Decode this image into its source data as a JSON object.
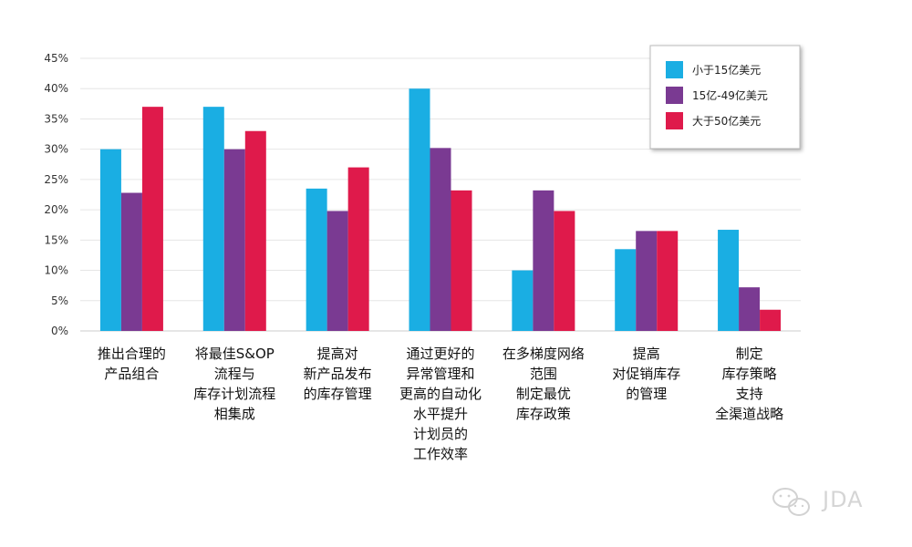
{
  "chart_data": {
    "type": "bar",
    "title": "",
    "xlabel": "",
    "ylabel": "",
    "ylim": [
      0,
      45
    ],
    "yticks": [
      0,
      5,
      10,
      15,
      20,
      25,
      30,
      35,
      40,
      45
    ],
    "ytick_format": "%",
    "grid": true,
    "legend_position": "top-right",
    "categories": [
      [
        "推出合理的",
        "产品组合"
      ],
      [
        "将最佳S&OP",
        "流程与",
        "库存计划流程",
        "相集成"
      ],
      [
        "提高对",
        "新产品发布",
        "的库存管理"
      ],
      [
        "通过更好的",
        "异常管理和",
        "更高的自动化",
        "水平提升",
        "计划员的",
        "工作效率"
      ],
      [
        "在多梯度网络",
        "范围",
        "制定最优",
        "库存政策"
      ],
      [
        "提高",
        "对促销库存",
        "的管理"
      ],
      [
        "制定",
        "库存策略",
        "支持",
        "全渠道战略"
      ]
    ],
    "series": [
      {
        "name": "小于15亿美元",
        "color": "#1aaee3",
        "values": [
          30,
          37,
          23.5,
          40,
          10,
          13.5,
          16.7
        ]
      },
      {
        "name": "15亿-49亿美元",
        "color": "#7a3a92",
        "values": [
          22.8,
          30,
          19.8,
          30.2,
          23.2,
          16.5,
          7.2
        ]
      },
      {
        "name": "大于50亿美元",
        "color": "#df1a4b",
        "values": [
          37,
          33,
          27,
          23.2,
          19.8,
          16.5,
          3.5
        ]
      }
    ]
  },
  "watermark": {
    "text": "JDA",
    "icon": "wechat-icon"
  }
}
